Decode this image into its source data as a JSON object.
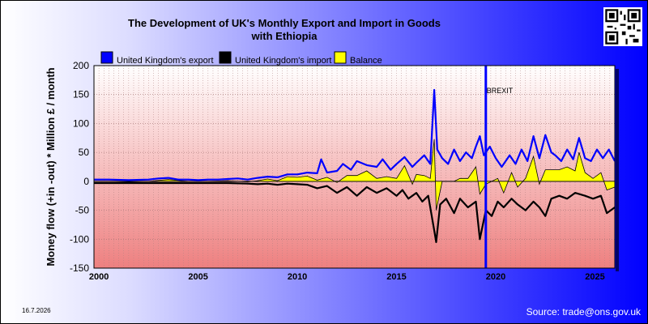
{
  "title": "The Development of UK's Monthly Export and Import in Goods with Ethiopia",
  "date": "16.7.2026",
  "source": "Source: trade@ons.gov.uk",
  "qr_code": "qr-code",
  "chart_data": {
    "type": "area",
    "title": "The Development of UK's Monthly Export and Import in Goods with Ethiopia",
    "ylabel": "Money flow (+in -out) * Million £ / month",
    "xlabel": "",
    "xlim": [
      1999.75,
      2026.0
    ],
    "ylim": [
      -150,
      200
    ],
    "y_ticks": [
      200,
      150,
      100,
      50,
      0,
      -50,
      -100,
      -150
    ],
    "x_ticks": [
      2000,
      2005,
      2010,
      2015,
      2020,
      2025
    ],
    "grid": true,
    "legend_position": "top",
    "annotation": {
      "label": "BREXIT",
      "x": 2019.5
    },
    "series": [
      {
        "name": "United Kingdom's export",
        "color": "#0000ff",
        "points": [
          [
            1999.75,
            3
          ],
          [
            2000.5,
            3
          ],
          [
            2001.5,
            2
          ],
          [
            2002.5,
            3
          ],
          [
            2003.0,
            5
          ],
          [
            2003.5,
            6
          ],
          [
            2004.0,
            3
          ],
          [
            2004.5,
            3
          ],
          [
            2005.0,
            2
          ],
          [
            2005.5,
            3
          ],
          [
            2006.0,
            3
          ],
          [
            2006.5,
            4
          ],
          [
            2007.0,
            5
          ],
          [
            2007.5,
            3
          ],
          [
            2008.0,
            6
          ],
          [
            2008.5,
            8
          ],
          [
            2009.0,
            7
          ],
          [
            2009.5,
            12
          ],
          [
            2010.0,
            12
          ],
          [
            2010.5,
            15
          ],
          [
            2011.0,
            14
          ],
          [
            2011.2,
            38
          ],
          [
            2011.5,
            15
          ],
          [
            2012.0,
            18
          ],
          [
            2012.3,
            30
          ],
          [
            2012.7,
            20
          ],
          [
            2013.0,
            35
          ],
          [
            2013.5,
            28
          ],
          [
            2014.0,
            25
          ],
          [
            2014.3,
            38
          ],
          [
            2014.7,
            20
          ],
          [
            2015.0,
            30
          ],
          [
            2015.4,
            42
          ],
          [
            2015.8,
            25
          ],
          [
            2016.0,
            32
          ],
          [
            2016.4,
            45
          ],
          [
            2016.7,
            30
          ],
          [
            2016.9,
            158
          ],
          [
            2017.05,
            55
          ],
          [
            2017.3,
            40
          ],
          [
            2017.6,
            30
          ],
          [
            2017.9,
            55
          ],
          [
            2018.2,
            35
          ],
          [
            2018.5,
            50
          ],
          [
            2018.8,
            40
          ],
          [
            2019.0,
            60
          ],
          [
            2019.2,
            78
          ],
          [
            2019.4,
            45
          ],
          [
            2019.7,
            60
          ],
          [
            2020.0,
            40
          ],
          [
            2020.3,
            25
          ],
          [
            2020.7,
            45
          ],
          [
            2021.0,
            30
          ],
          [
            2021.3,
            55
          ],
          [
            2021.6,
            35
          ],
          [
            2021.9,
            78
          ],
          [
            2022.2,
            40
          ],
          [
            2022.5,
            80
          ],
          [
            2022.8,
            50
          ],
          [
            2023.0,
            45
          ],
          [
            2023.3,
            35
          ],
          [
            2023.6,
            55
          ],
          [
            2023.9,
            38
          ],
          [
            2024.2,
            75
          ],
          [
            2024.5,
            40
          ],
          [
            2024.8,
            35
          ],
          [
            2025.1,
            55
          ],
          [
            2025.4,
            40
          ],
          [
            2025.7,
            55
          ],
          [
            2026.0,
            35
          ]
        ]
      },
      {
        "name": "United Kingdom's import",
        "color": "#000000",
        "points": [
          [
            1999.75,
            -3
          ],
          [
            2000.5,
            -3
          ],
          [
            2001.5,
            -3
          ],
          [
            2002.5,
            -3
          ],
          [
            2003.5,
            -3
          ],
          [
            2004.5,
            -3
          ],
          [
            2005.5,
            -3
          ],
          [
            2006.5,
            -3
          ],
          [
            2007.5,
            -4
          ],
          [
            2008.0,
            -5
          ],
          [
            2008.5,
            -4
          ],
          [
            2009.0,
            -6
          ],
          [
            2009.5,
            -4
          ],
          [
            2010.0,
            -5
          ],
          [
            2010.5,
            -6
          ],
          [
            2011.0,
            -12
          ],
          [
            2011.5,
            -8
          ],
          [
            2012.0,
            -20
          ],
          [
            2012.5,
            -10
          ],
          [
            2013.0,
            -25
          ],
          [
            2013.5,
            -10
          ],
          [
            2014.0,
            -20
          ],
          [
            2014.5,
            -12
          ],
          [
            2015.0,
            -25
          ],
          [
            2015.3,
            -15
          ],
          [
            2015.6,
            -30
          ],
          [
            2016.0,
            -20
          ],
          [
            2016.3,
            -35
          ],
          [
            2016.6,
            -25
          ],
          [
            2016.9,
            -85
          ],
          [
            2017.0,
            -105
          ],
          [
            2017.2,
            -40
          ],
          [
            2017.5,
            -30
          ],
          [
            2017.9,
            -55
          ],
          [
            2018.2,
            -30
          ],
          [
            2018.6,
            -45
          ],
          [
            2019.0,
            -35
          ],
          [
            2019.2,
            -100
          ],
          [
            2019.5,
            -50
          ],
          [
            2019.8,
            -60
          ],
          [
            2020.1,
            -35
          ],
          [
            2020.4,
            -45
          ],
          [
            2020.8,
            -30
          ],
          [
            2021.1,
            -40
          ],
          [
            2021.5,
            -50
          ],
          [
            2021.9,
            -35
          ],
          [
            2022.2,
            -45
          ],
          [
            2022.5,
            -60
          ],
          [
            2022.8,
            -30
          ],
          [
            2023.2,
            -25
          ],
          [
            2023.6,
            -30
          ],
          [
            2024.0,
            -20
          ],
          [
            2024.5,
            -25
          ],
          [
            2024.9,
            -30
          ],
          [
            2025.3,
            -25
          ],
          [
            2025.6,
            -55
          ],
          [
            2026.0,
            -45
          ]
        ]
      },
      {
        "name": "Balance",
        "color": "#ffff00",
        "points": [
          [
            1999.75,
            0
          ],
          [
            2000.5,
            0
          ],
          [
            2001.5,
            -1
          ],
          [
            2002.5,
            0
          ],
          [
            2003.5,
            3
          ],
          [
            2004.5,
            0
          ],
          [
            2005.5,
            0
          ],
          [
            2006.5,
            1
          ],
          [
            2007.5,
            -1
          ],
          [
            2008.0,
            1
          ],
          [
            2008.5,
            4
          ],
          [
            2009.0,
            1
          ],
          [
            2009.5,
            8
          ],
          [
            2010.0,
            7
          ],
          [
            2010.5,
            9
          ],
          [
            2011.0,
            2
          ],
          [
            2011.5,
            7
          ],
          [
            2012.0,
            -2
          ],
          [
            2012.5,
            10
          ],
          [
            2013.0,
            10
          ],
          [
            2013.5,
            18
          ],
          [
            2014.0,
            5
          ],
          [
            2014.5,
            8
          ],
          [
            2015.0,
            5
          ],
          [
            2015.4,
            27
          ],
          [
            2015.8,
            -5
          ],
          [
            2016.0,
            12
          ],
          [
            2016.4,
            10
          ],
          [
            2016.7,
            5
          ],
          [
            2016.9,
            73
          ],
          [
            2017.0,
            -50
          ],
          [
            2017.3,
            0
          ],
          [
            2017.6,
            0
          ],
          [
            2017.9,
            0
          ],
          [
            2018.2,
            5
          ],
          [
            2018.6,
            5
          ],
          [
            2019.0,
            25
          ],
          [
            2019.2,
            -22
          ],
          [
            2019.5,
            -5
          ],
          [
            2019.8,
            0
          ],
          [
            2020.1,
            5
          ],
          [
            2020.4,
            -20
          ],
          [
            2020.8,
            15
          ],
          [
            2021.1,
            -10
          ],
          [
            2021.5,
            5
          ],
          [
            2021.9,
            43
          ],
          [
            2022.2,
            -5
          ],
          [
            2022.5,
            20
          ],
          [
            2022.8,
            20
          ],
          [
            2023.2,
            20
          ],
          [
            2023.6,
            25
          ],
          [
            2024.0,
            18
          ],
          [
            2024.2,
            50
          ],
          [
            2024.5,
            15
          ],
          [
            2024.9,
            5
          ],
          [
            2025.3,
            15
          ],
          [
            2025.6,
            -15
          ],
          [
            2026.0,
            -10
          ]
        ]
      }
    ]
  }
}
